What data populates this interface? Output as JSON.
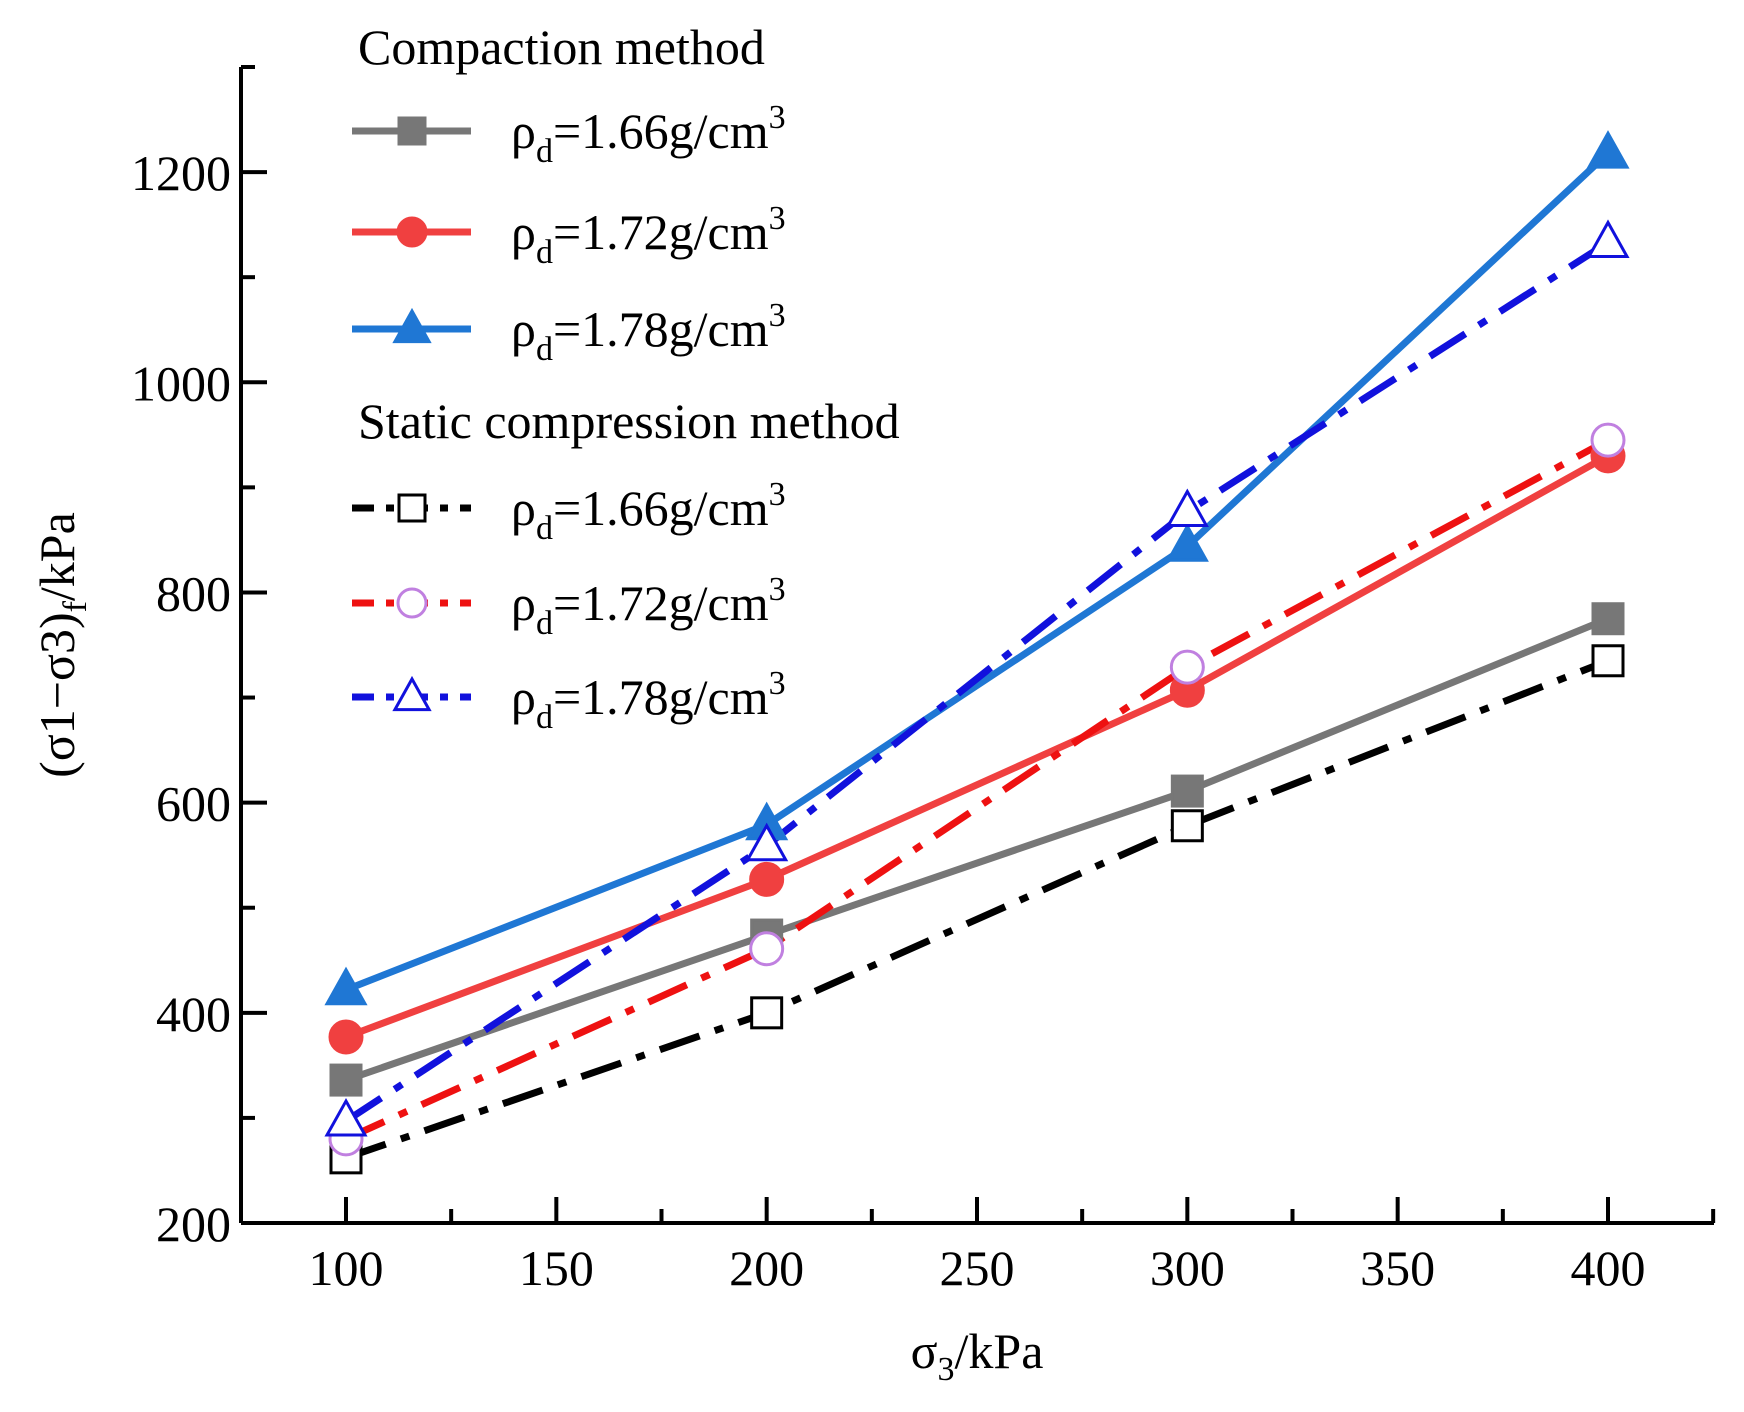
{
  "chart_data": {
    "type": "line",
    "title": "",
    "xlabel": {
      "main": "σ",
      "sub": "3",
      "rest": "/kPa"
    },
    "ylabel": {
      "main": "(σ1−σ3)",
      "sub": "f",
      "rest": "/kPa"
    },
    "xlim": [
      75,
      425
    ],
    "ylim": [
      200,
      1300
    ],
    "xticks": [
      100,
      150,
      200,
      250,
      300,
      350,
      400
    ],
    "yticks": [
      200,
      400,
      600,
      800,
      1000,
      1200
    ],
    "x": [
      100,
      200,
      300,
      400
    ],
    "groups": [
      {
        "name": "Compaction method",
        "series_indices": [
          0,
          1,
          2
        ]
      },
      {
        "name": "Static compression method",
        "series_indices": [
          3,
          4,
          5
        ]
      }
    ],
    "series": [
      {
        "name": "ρd=1.66g/cm3",
        "label_main": "ρ",
        "label_sub": "d",
        "label_rest": "=1.66g/cm",
        "label_sup": "3",
        "group": "Compaction method",
        "values": [
          336,
          474,
          611,
          775
        ],
        "color": "#777777",
        "line": "solid",
        "marker": "square",
        "fill": "#777777"
      },
      {
        "name": "ρd=1.72g/cm3",
        "label_main": "ρ",
        "label_sub": "d",
        "label_rest": "=1.72g/cm",
        "label_sup": "3",
        "group": "Compaction method",
        "values": [
          377,
          527,
          707,
          930
        ],
        "color": "#f04040",
        "line": "solid",
        "marker": "circle",
        "fill": "#f04040"
      },
      {
        "name": "ρd=1.78g/cm3",
        "label_main": "ρ",
        "label_sub": "d",
        "label_rest": "=1.78g/cm",
        "label_sup": "3",
        "group": "Compaction method",
        "values": [
          422,
          579,
          844,
          1218
        ],
        "color": "#1f77d4",
        "line": "solid",
        "marker": "triangle",
        "fill": "#1f77d4"
      },
      {
        "name": "ρd=1.66g/cm3",
        "label_main": "ρ",
        "label_sub": "d",
        "label_rest": "=1.66g/cm",
        "label_sup": "3",
        "group": "Static compression method",
        "values": [
          262,
          400,
          578,
          735
        ],
        "color": "#000000",
        "line": "dashdot",
        "marker": "square-open",
        "fill": "#ffffff",
        "marker_color": "#000000"
      },
      {
        "name": "ρd=1.72g/cm3",
        "label_main": "ρ",
        "label_sub": "d",
        "label_rest": "=1.72g/cm",
        "label_sup": "3",
        "group": "Static compression method",
        "values": [
          280,
          461,
          729,
          945
        ],
        "color": "#ee1111",
        "line": "dashdot",
        "marker": "circle-open",
        "fill": "#ffffff",
        "marker_color": "#c080e0"
      },
      {
        "name": "ρd=1.78g/cm3",
        "label_main": "ρ",
        "label_sub": "d",
        "label_rest": "=1.78g/cm",
        "label_sup": "3",
        "group": "Static compression method",
        "values": [
          297,
          559,
          877,
          1133
        ],
        "color": "#1111dd",
        "line": "dashdot",
        "marker": "triangle-open",
        "fill": "#ffffff",
        "marker_color": "#1111dd"
      }
    ],
    "legend": "top-left",
    "grid": false
  }
}
